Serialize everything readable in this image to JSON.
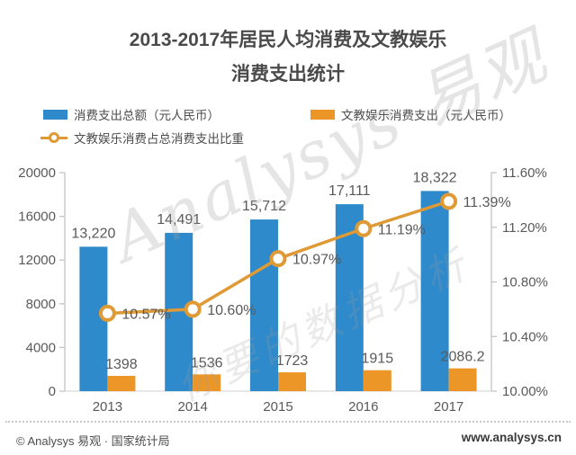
{
  "title": {
    "line1": "2013-2017年居民人均消费及文教娱乐",
    "line2": "消费支出统计"
  },
  "legend": [
    {
      "label": "消费支出总额（元人民币）",
      "type": "bar",
      "color": "#2e8acb"
    },
    {
      "label": "文教娱乐消费支出（元人民币）",
      "type": "bar",
      "color": "#ec9628"
    },
    {
      "label": "文教娱乐消费占总消费支出比重",
      "type": "line",
      "color": "#e09a35"
    }
  ],
  "watermark": {
    "line1": "Analysys 易观",
    "line2": "你要的数据分析"
  },
  "footer": {
    "left": "© Analysys 易观 · 国家统计局",
    "right": "www.analysys.cn"
  },
  "colors": {
    "bar_total": "#2e8acb",
    "bar_edu": "#ec9628",
    "trend_line": "#e09a35",
    "label_text": "#595959",
    "axis_line": "#c4c4c4",
    "baseline": "#d9d9d9"
  },
  "chart_data": {
    "type": "bar",
    "subtype": "grouped-bar-with-line",
    "title": "2013-2017年居民人均消费及文教娱乐消费支出统计",
    "categories": [
      "2013",
      "2014",
      "2015",
      "2016",
      "2017"
    ],
    "series": [
      {
        "name": "消费支出总额（元人民币）",
        "type": "bar",
        "axis": "left",
        "values": [
          13220,
          14491,
          15712,
          17111,
          18322
        ],
        "labels": [
          "13,220",
          "14,491",
          "15,712",
          "17,111",
          "18,322"
        ]
      },
      {
        "name": "文教娱乐消费支出（元人民币）",
        "type": "bar",
        "axis": "left",
        "values": [
          1398,
          1536,
          1723,
          1915,
          2086.2
        ],
        "labels": [
          "1398",
          "1536",
          "1723",
          "1915",
          "2086.2"
        ]
      },
      {
        "name": "文教娱乐消费占总消费支出比重",
        "type": "line",
        "axis": "right",
        "values": [
          10.57,
          10.6,
          10.97,
          11.19,
          11.39
        ],
        "labels": [
          "10.57%",
          "10.60%",
          "10.97%",
          "11.19%",
          "11.39%"
        ]
      }
    ],
    "left_axis": {
      "min": 0,
      "max": 20000,
      "step": 4000,
      "ticks": [
        "0",
        "4000",
        "8000",
        "12000",
        "16000",
        "20000"
      ]
    },
    "right_axis": {
      "min": 10.0,
      "max": 11.6,
      "step": 0.4,
      "ticks": [
        "10.00%",
        "10.40%",
        "10.80%",
        "11.20%",
        "11.60%"
      ]
    },
    "grid": false,
    "legend_position": "top"
  }
}
